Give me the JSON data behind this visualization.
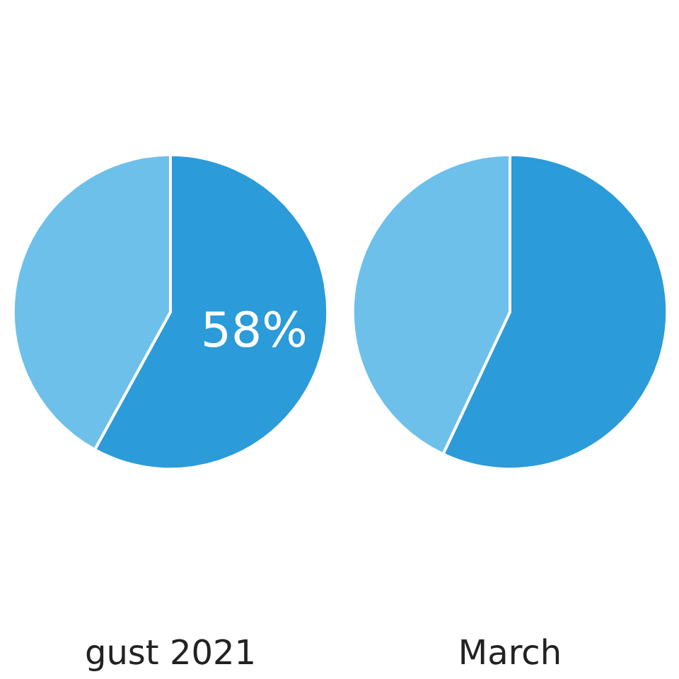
{
  "chart_data": [
    {
      "type": "pie",
      "title": "gust 2021",
      "categories": [
        null,
        null
      ],
      "values": [
        58,
        42
      ],
      "colors": [
        "#2b9bd9",
        "#6dc0ea"
      ],
      "value_labels": [
        "58%",
        null
      ]
    },
    {
      "type": "pie",
      "title": "March",
      "categories": [
        null,
        null
      ],
      "values": [
        57,
        43
      ],
      "colors": [
        "#2b9bd9",
        "#6dc0ea"
      ]
    }
  ]
}
